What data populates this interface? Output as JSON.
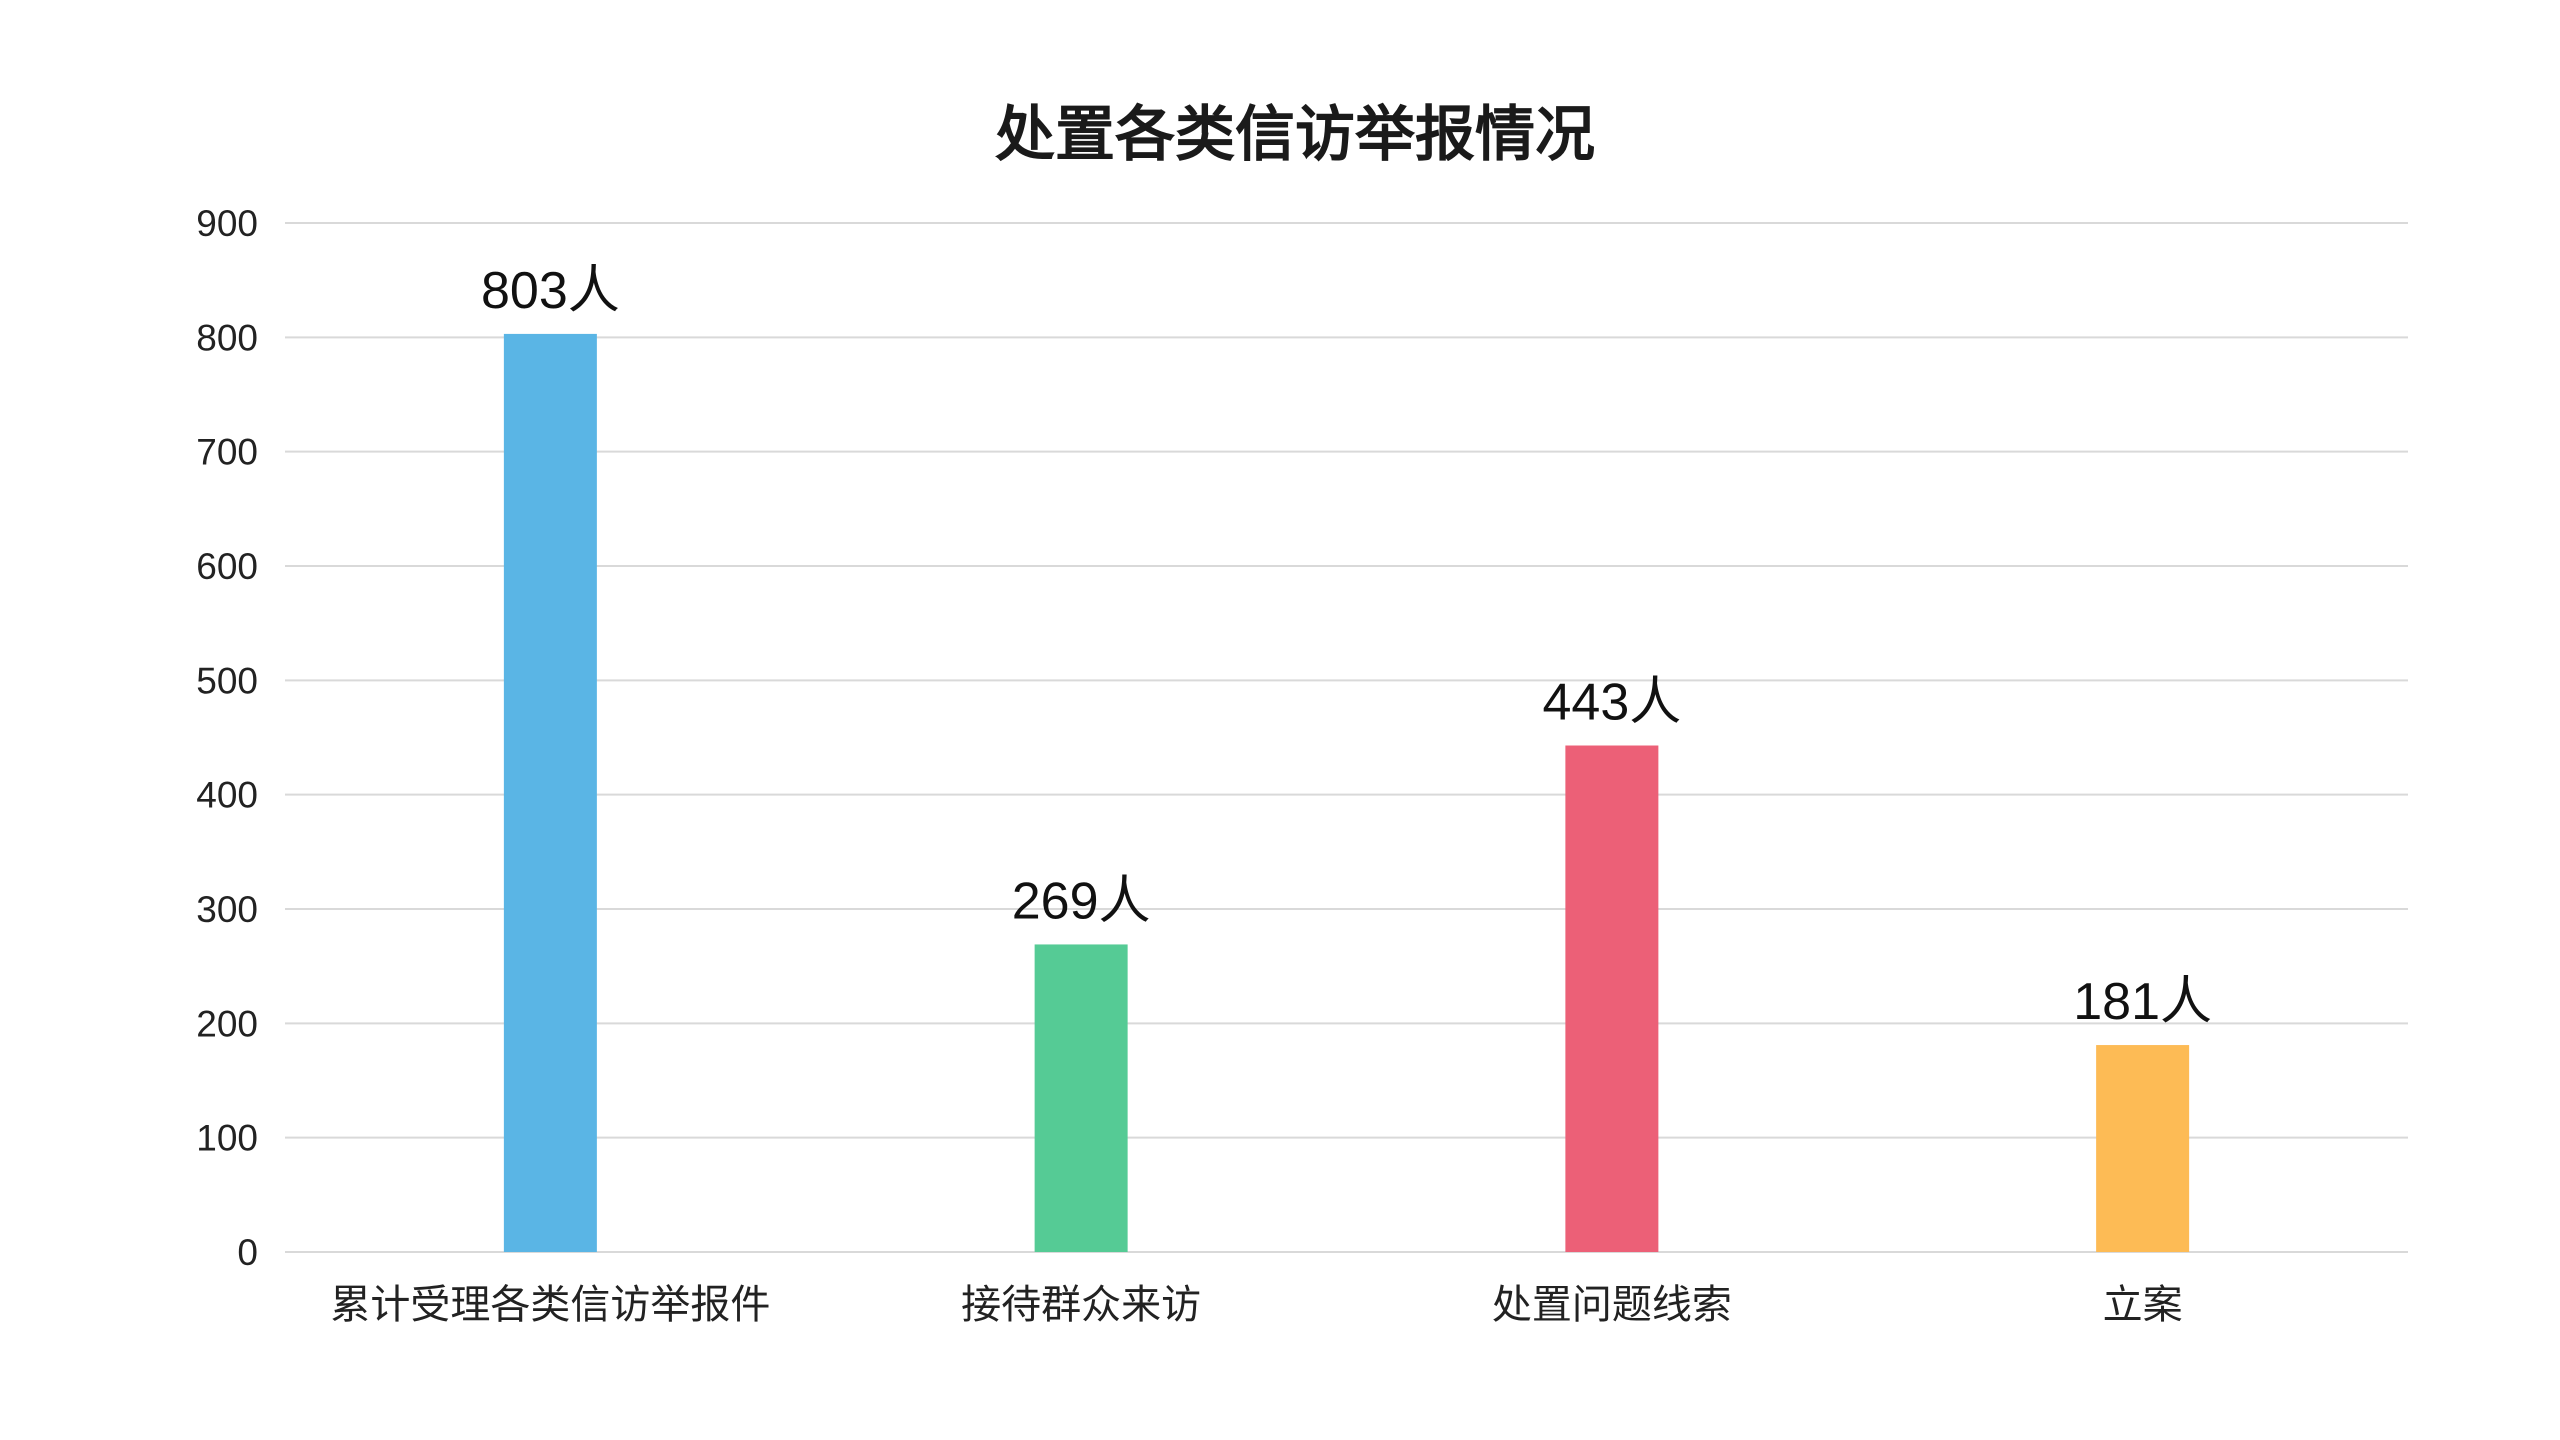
{
  "chart_data": {
    "type": "bar",
    "title": "处置各类信访举报情况",
    "xlabel": "",
    "ylabel": "",
    "categories": [
      "累计受理各类信访举报件",
      "接待群众来访",
      "处置问题线索",
      "立案"
    ],
    "values": [
      803,
      269,
      443,
      181
    ],
    "value_labels": [
      "803人",
      "269人",
      "443人",
      "181人"
    ],
    "colors": [
      "#5ab5e5",
      "#55cb95",
      "#ec6077",
      "#fdbb55"
    ],
    "ylim": [
      0,
      900
    ],
    "yticks": [
      0,
      100,
      200,
      300,
      400,
      500,
      600,
      700,
      800,
      900
    ],
    "grid": true,
    "legend": "none"
  }
}
